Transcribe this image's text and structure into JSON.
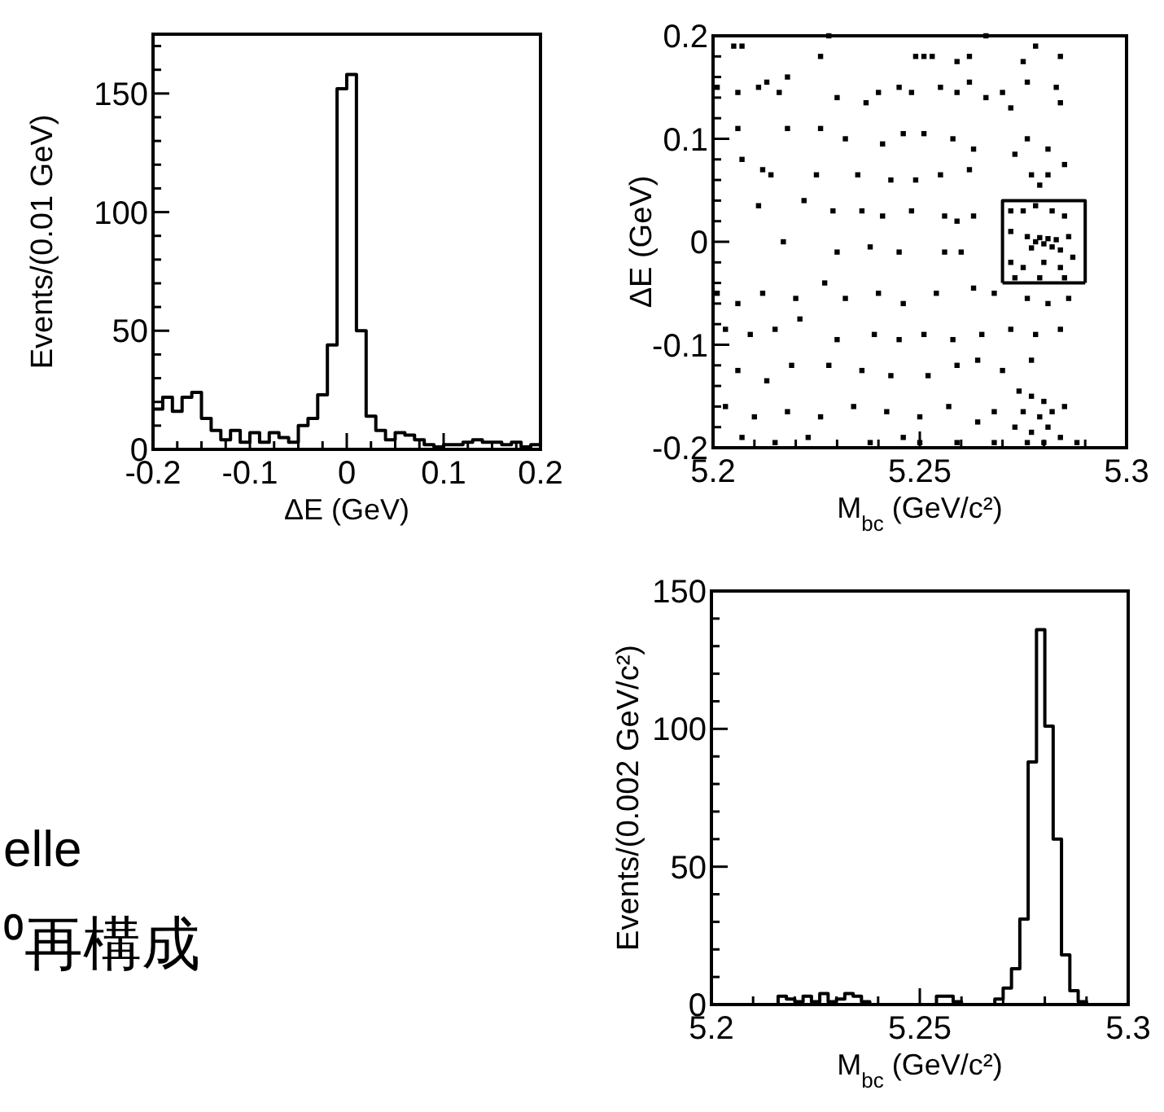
{
  "chart_data": [
    {
      "type": "histogram",
      "xlabel": "ΔE (GeV)",
      "ylabel": "Events/(0.01 GeV)",
      "color": "#000000",
      "bins": [
        -0.2,
        -0.19,
        -0.18,
        -0.17,
        -0.16,
        -0.15,
        -0.14,
        -0.13,
        -0.12,
        -0.11,
        -0.1,
        -0.09,
        -0.08,
        -0.07,
        -0.06,
        -0.05,
        -0.04,
        -0.03,
        -0.02,
        -0.01,
        0,
        0.01,
        0.02,
        0.03,
        0.04,
        0.05,
        0.06,
        0.07,
        0.08,
        0.09,
        0.1,
        0.11,
        0.12,
        0.13,
        0.14,
        0.15,
        0.16,
        0.17,
        0.18,
        0.19,
        0.2
      ],
      "values": [
        17,
        22,
        16,
        22,
        24,
        13,
        8,
        4,
        8,
        3,
        7,
        3,
        7,
        5,
        3,
        10,
        13,
        23,
        44,
        152,
        158,
        50,
        14,
        8,
        4,
        7,
        6,
        4,
        2,
        1,
        2,
        2,
        3,
        4,
        3,
        3,
        2,
        3,
        1,
        2
      ],
      "xlim": [
        -0.2,
        0.2
      ],
      "ylim": [
        0,
        175
      ],
      "xticks": [
        -0.2,
        {
          "value": -0.175,
          "label": null
        },
        {
          "value": -0.15,
          "label": null
        },
        {
          "value": -0.125,
          "label": null
        },
        -0.1,
        {
          "value": -0.075,
          "label": null
        },
        {
          "value": -0.05,
          "label": null
        },
        {
          "value": -0.025,
          "label": null
        },
        0,
        {
          "value": 0.025,
          "label": null
        },
        {
          "value": 0.05,
          "label": null
        },
        {
          "value": 0.075,
          "label": null
        },
        0.1,
        {
          "value": 0.125,
          "label": null
        },
        {
          "value": 0.15,
          "label": null
        },
        {
          "value": 0.175,
          "label": null
        },
        0.2
      ],
      "yticks": [
        0,
        {
          "value": 10,
          "label": null
        },
        {
          "value": 20,
          "label": null
        },
        {
          "value": 30,
          "label": null
        },
        {
          "value": 40,
          "label": null
        },
        50,
        {
          "value": 60,
          "label": null
        },
        {
          "value": 70,
          "label": null
        },
        {
          "value": 80,
          "label": null
        },
        {
          "value": 90,
          "label": null
        },
        100,
        {
          "value": 110,
          "label": null
        },
        {
          "value": 120,
          "label": null
        },
        {
          "value": 130,
          "label": null
        },
        {
          "value": 140,
          "label": null
        },
        150,
        {
          "value": 160,
          "label": null
        },
        {
          "value": 170,
          "label": null
        }
      ]
    },
    {
      "type": "scatter",
      "xlabel": "M$_{bc}$ (GeV/c²)",
      "ylabel": "ΔE (GeV)",
      "xlim": [
        5.2,
        5.3
      ],
      "ylim": [
        -0.2,
        0.2
      ],
      "xticks": [
        5.2,
        {
          "value": 5.21,
          "label": null
        },
        {
          "value": 5.22,
          "label": null
        },
        {
          "value": 5.23,
          "label": null
        },
        {
          "value": 5.24,
          "label": null
        },
        5.25,
        {
          "value": 5.26,
          "label": null
        },
        {
          "value": 5.27,
          "label": null
        },
        {
          "value": 5.28,
          "label": null
        },
        {
          "value": 5.29,
          "label": null
        },
        5.3
      ],
      "yticks": [
        -0.2,
        {
          "value": -0.18,
          "label": null
        },
        {
          "value": -0.16,
          "label": null
        },
        {
          "value": -0.14,
          "label": null
        },
        {
          "value": -0.12,
          "label": null
        },
        -0.1,
        {
          "value": -0.08,
          "label": null
        },
        {
          "value": -0.06,
          "label": null
        },
        {
          "value": -0.04,
          "label": null
        },
        {
          "value": -0.02,
          "label": null
        },
        0,
        {
          "value": 0.02,
          "label": null
        },
        {
          "value": 0.04,
          "label": null
        },
        {
          "value": 0.06,
          "label": null
        },
        {
          "value": 0.08,
          "label": null
        },
        0.1,
        {
          "value": 0.12,
          "label": null
        },
        {
          "value": 0.14,
          "label": null
        },
        {
          "value": 0.16,
          "label": null
        },
        {
          "value": 0.18,
          "label": null
        },
        0.2
      ],
      "series": [
        {
          "type": "scatter",
          "marker": "square",
          "color": "#000000",
          "x": [
            5.205,
            5.207,
            5.226,
            5.249,
            5.251,
            5.253,
            5.259,
            5.262,
            5.275,
            5.278,
            5.284,
            5.228,
            5.266,
            5.201,
            5.206,
            5.211,
            5.213,
            5.218,
            5.216,
            5.23,
            5.237,
            5.24,
            5.245,
            5.248,
            5.255,
            5.259,
            5.262,
            5.266,
            5.27,
            5.276,
            5.283,
            5.284,
            5.272,
            5.206,
            5.218,
            5.226,
            5.232,
            5.241,
            5.246,
            5.251,
            5.258,
            5.263,
            5.276,
            5.273,
            5.281,
            5.207,
            5.212,
            5.214,
            5.225,
            5.235,
            5.243,
            5.249,
            5.255,
            5.262,
            5.277,
            5.281,
            5.285,
            5.279,
            5.211,
            5.222,
            5.229,
            5.236,
            5.241,
            5.248,
            5.256,
            5.259,
            5.263,
            5.217,
            5.23,
            5.238,
            5.245,
            5.256,
            5.26,
            5.272,
            5.275,
            5.278,
            5.282,
            5.285,
            5.272,
            5.276,
            5.278,
            5.279,
            5.28,
            5.281,
            5.282,
            5.277,
            5.283,
            5.284,
            5.286,
            5.272,
            5.275,
            5.28,
            5.284,
            5.287,
            5.273,
            5.279,
            5.285,
            5.201,
            5.206,
            5.212,
            5.22,
            5.227,
            5.232,
            5.24,
            5.246,
            5.254,
            5.263,
            5.268,
            5.276,
            5.281,
            5.286,
            5.203,
            5.209,
            5.215,
            5.221,
            5.23,
            5.239,
            5.245,
            5.251,
            5.258,
            5.265,
            5.272,
            5.278,
            5.284,
            5.206,
            5.213,
            5.219,
            5.228,
            5.236,
            5.243,
            5.252,
            5.259,
            5.264,
            5.27,
            5.277,
            5.274,
            5.277,
            5.28,
            5.275,
            5.279,
            5.282,
            5.285,
            5.273,
            5.277,
            5.281,
            5.284,
            5.276,
            5.28,
            5.203,
            5.21,
            5.218,
            5.226,
            5.234,
            5.242,
            5.25,
            5.257,
            5.264,
            5.268,
            5.207,
            5.215,
            5.223,
            5.238,
            5.246,
            5.25,
            5.259,
            5.268,
            5.288
          ],
          "values": [
            0.19,
            0.19,
            0.18,
            0.18,
            0.18,
            0.18,
            0.175,
            0.18,
            0.175,
            0.19,
            0.18,
            0.2,
            0.2,
            0.15,
            0.145,
            0.15,
            0.155,
            0.16,
            0.145,
            0.14,
            0.135,
            0.145,
            0.15,
            0.145,
            0.15,
            0.145,
            0.155,
            0.14,
            0.145,
            0.155,
            0.15,
            0.135,
            0.13,
            0.11,
            0.11,
            0.11,
            0.1,
            0.095,
            0.105,
            0.105,
            0.1,
            0.09,
            0.1,
            0.085,
            0.09,
            0.08,
            0.07,
            0.065,
            0.065,
            0.065,
            0.06,
            0.06,
            0.065,
            0.07,
            0.065,
            0.065,
            0.075,
            0.055,
            0.035,
            0.04,
            0.03,
            0.03,
            0.025,
            0.03,
            0.025,
            0.02,
            0.025,
            0.0,
            -0.01,
            -0.005,
            -0.01,
            -0.01,
            -0.01,
            0.03,
            0.03,
            0.035,
            0.03,
            0.025,
            0.01,
            0.005,
            0.0,
            0.004,
            -0.002,
            0.003,
            -0.005,
            -0.006,
            0.002,
            -0.008,
            0.005,
            -0.02,
            -0.025,
            -0.02,
            -0.025,
            -0.015,
            -0.035,
            -0.035,
            -0.035,
            -0.05,
            -0.06,
            -0.05,
            -0.055,
            -0.04,
            -0.055,
            -0.05,
            -0.06,
            -0.05,
            -0.045,
            -0.05,
            -0.055,
            -0.06,
            -0.055,
            -0.085,
            -0.09,
            -0.085,
            -0.075,
            -0.095,
            -0.09,
            -0.095,
            -0.09,
            -0.095,
            -0.09,
            -0.085,
            -0.09,
            -0.085,
            -0.125,
            -0.135,
            -0.12,
            -0.12,
            -0.125,
            -0.13,
            -0.13,
            -0.12,
            -0.115,
            -0.125,
            -0.115,
            -0.145,
            -0.15,
            -0.155,
            -0.165,
            -0.17,
            -0.165,
            -0.16,
            -0.18,
            -0.185,
            -0.18,
            -0.19,
            -0.195,
            -0.195,
            -0.16,
            -0.17,
            -0.165,
            -0.17,
            -0.16,
            -0.165,
            -0.17,
            -0.16,
            -0.175,
            -0.165,
            -0.19,
            -0.195,
            -0.19,
            -0.195,
            -0.19,
            -0.195,
            -0.195,
            -0.195,
            -0.195
          ]
        },
        {
          "type": "line",
          "marker": "none",
          "color": "#000000",
          "x": [
            5.27,
            5.27,
            5.29,
            5.29
          ],
          "values": [
            -0.04,
            0.04,
            0.04,
            -0.04
          ]
        },
        {
          "type": "line",
          "marker": "none",
          "color": "#000000",
          "x": [
            5.27,
            5.29
          ],
          "values": [
            -0.04,
            -0.04
          ]
        }
      ]
    },
    {
      "type": "histogram",
      "xlabel": "M$_{bc}$ (GeV/c²)",
      "ylabel": "Events/(0.002 GeV/c²)",
      "color": "#000000",
      "bins": [
        5.2,
        5.202,
        5.204,
        5.206,
        5.208,
        5.21,
        5.212,
        5.214,
        5.216,
        5.218,
        5.22,
        5.222,
        5.224,
        5.226,
        5.228,
        5.23,
        5.232,
        5.234,
        5.236,
        5.238,
        5.24,
        5.242,
        5.244,
        5.246,
        5.248,
        5.25,
        5.252,
        5.254,
        5.256,
        5.258,
        5.26,
        5.262,
        5.264,
        5.266,
        5.268,
        5.27,
        5.272,
        5.274,
        5.276,
        5.278,
        5.28,
        5.282,
        5.284,
        5.286,
        5.288,
        5.29,
        5.292,
        5.294,
        5.296,
        5.298,
        5.3
      ],
      "values": [
        0,
        0,
        0,
        0,
        0,
        0,
        0,
        0,
        3,
        2,
        1,
        3,
        1,
        4,
        1,
        2,
        4,
        3,
        1,
        0,
        0,
        0,
        0,
        0,
        0,
        0,
        0,
        3,
        3,
        1,
        0,
        0,
        0,
        0,
        2,
        6,
        13,
        31,
        88,
        136,
        101,
        60,
        18,
        5,
        1,
        0,
        0,
        0,
        0,
        0
      ],
      "xlim": [
        5.2,
        5.3
      ],
      "ylim": [
        0,
        150
      ],
      "xticks": [
        5.2,
        {
          "value": 5.21,
          "label": null
        },
        {
          "value": 5.22,
          "label": null
        },
        {
          "value": 5.23,
          "label": null
        },
        {
          "value": 5.24,
          "label": null
        },
        5.25,
        {
          "value": 5.26,
          "label": null
        },
        {
          "value": 5.27,
          "label": null
        },
        {
          "value": 5.28,
          "label": null
        },
        {
          "value": 5.29,
          "label": null
        },
        5.3
      ],
      "yticks": [
        0,
        {
          "value": 10,
          "label": null
        },
        {
          "value": 20,
          "label": null
        },
        {
          "value": 30,
          "label": null
        },
        {
          "value": 40,
          "label": null
        },
        50,
        {
          "value": 60,
          "label": null
        },
        {
          "value": 70,
          "label": null
        },
        {
          "value": 80,
          "label": null
        },
        {
          "value": 90,
          "label": null
        },
        100,
        {
          "value": 110,
          "label": null
        },
        {
          "value": 120,
          "label": null
        },
        {
          "value": 130,
          "label": null
        },
        {
          "value": 140,
          "label": null
        },
        150
      ]
    },
    {
      "type": "other",
      "annotations": [
        "elle",
        "⁰再構成"
      ]
    }
  ]
}
